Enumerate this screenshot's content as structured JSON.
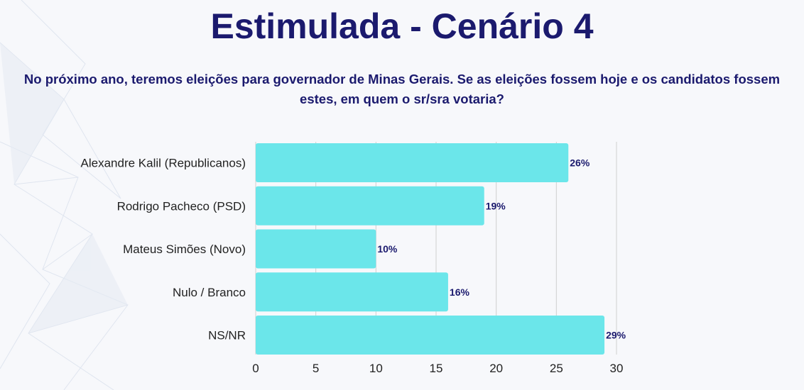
{
  "title": "Estimulada - Cenário 4",
  "subtitle": "No próximo ano, teremos eleições para governador de Minas Gerais. Se as eleições fossem hoje e os candidatos fossem estes, em quem o sr/sra votaria?",
  "colors": {
    "bar": "#6be6ea",
    "title": "#1b1a6e",
    "data_label": "#1b1a6e",
    "category_label": "#222222",
    "grid": "#cfcfcf"
  },
  "chart_data": {
    "type": "bar",
    "orientation": "horizontal",
    "categories": [
      "Alexandre Kalil (Republicanos)",
      "Rodrigo Pacheco (PSD)",
      "Mateus Simões (Novo)",
      "Nulo / Branco",
      "NS/NR"
    ],
    "values": [
      26,
      19,
      10,
      16,
      29
    ],
    "data_labels": [
      "26%",
      "19%",
      "10%",
      "16%",
      "29%"
    ],
    "x_ticks": [
      "0",
      "5",
      "10",
      "15",
      "20",
      "25",
      "30"
    ],
    "xlim": [
      0,
      30
    ],
    "grid": true
  }
}
